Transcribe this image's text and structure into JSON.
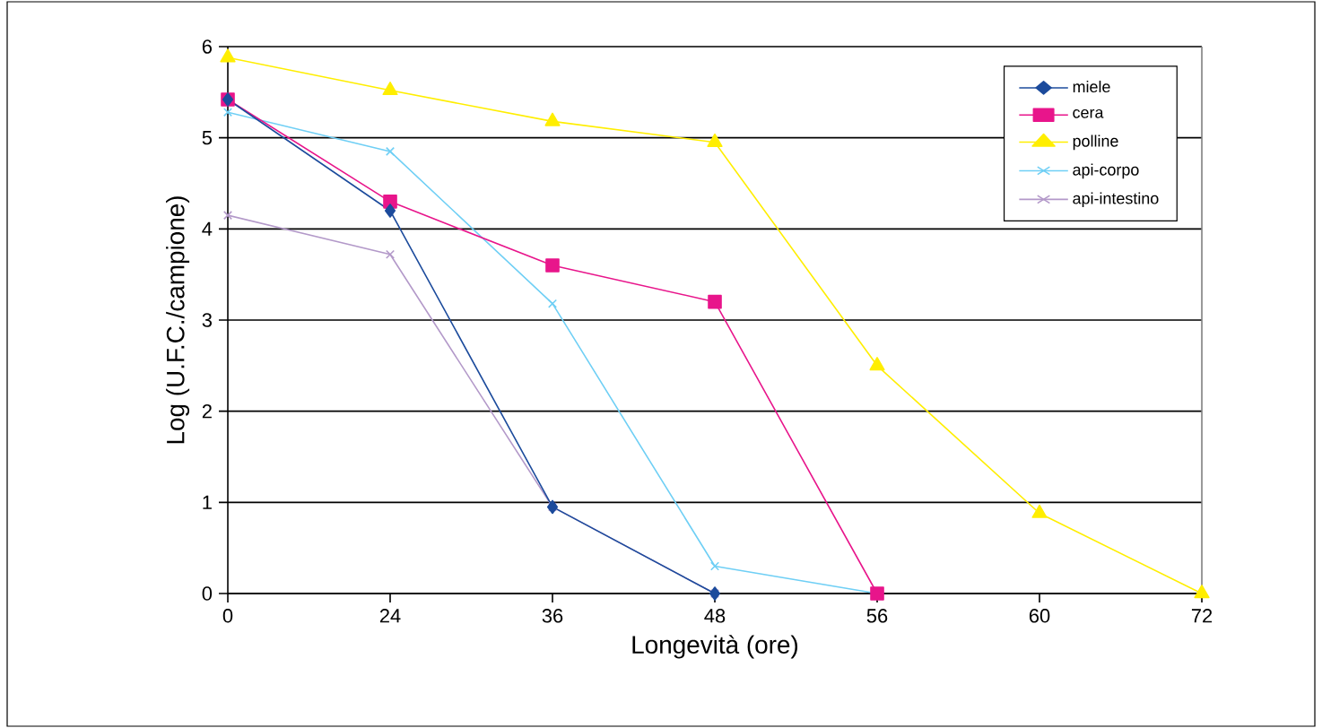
{
  "chart_data": {
    "type": "line",
    "xlabel": "Longevità (ore)",
    "ylabel": "Log (U.F.C./campione)",
    "categories": [
      "0",
      "24",
      "36",
      "48",
      "56",
      "60",
      "72"
    ],
    "ylim": [
      0,
      6
    ],
    "yticks": [
      0,
      1,
      2,
      3,
      4,
      5,
      6
    ],
    "grid": "y",
    "legend": "top right",
    "line_style": "solid",
    "series": [
      {
        "name": "miele",
        "color": "#1c4b9c",
        "marker": "diamond",
        "values": [
          5.42,
          4.2,
          0.95,
          0,
          null,
          null,
          null
        ]
      },
      {
        "name": "cera",
        "color": "#e8158b",
        "marker": "square",
        "values": [
          5.42,
          4.3,
          3.6,
          3.2,
          0,
          null,
          null
        ]
      },
      {
        "name": "polline",
        "color": "#ffee00",
        "marker": "triangle",
        "values": [
          5.88,
          5.52,
          5.18,
          4.95,
          2.5,
          0.88,
          0
        ]
      },
      {
        "name": "api-corpo",
        "color": "#6fcff5",
        "marker": "cross",
        "values": [
          5.28,
          4.85,
          3.18,
          0.3,
          0,
          null,
          null
        ]
      },
      {
        "name": "api-intestino",
        "color": "#b399c9",
        "marker": "cross",
        "values": [
          4.15,
          3.72,
          0.95,
          0,
          null,
          null,
          null
        ]
      }
    ]
  }
}
